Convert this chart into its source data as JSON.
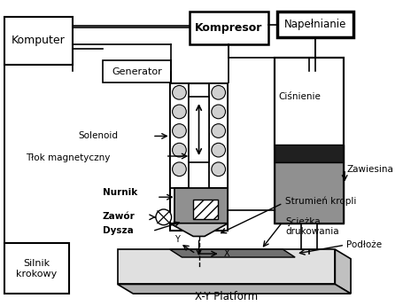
{
  "bg_color": "#ffffff",
  "labels": {
    "komputer": "Komputer",
    "kompresor": "Kompresor",
    "napelnianie": "Napełnianie",
    "generator": "Generator",
    "solenoid": "Solenoid",
    "tlok": "Tłok magnetyczny",
    "nurnik": "Nurnik",
    "zawor": "Zawór",
    "dysza": "Dysza",
    "cisnienie": "Ciśnienie",
    "zawiesina": "Zawiesina",
    "strumien": "Strumień kropli",
    "sciezka": "Şcieżka\ndrukowania",
    "podloze": "Podłoże",
    "silnik": "Silnik\nkrokowy",
    "platform": "X-Y Platform"
  }
}
